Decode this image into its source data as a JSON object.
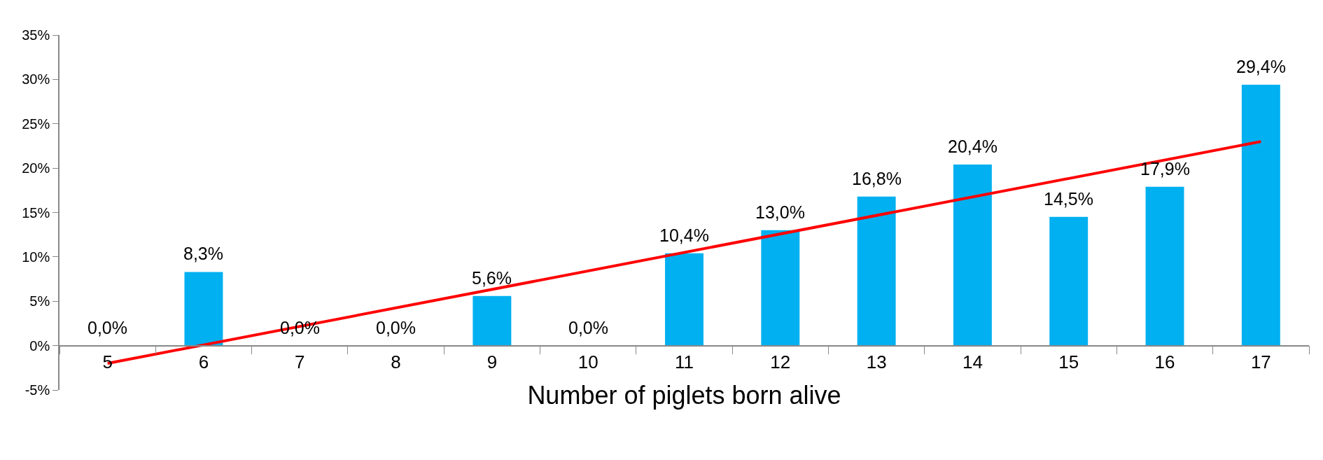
{
  "chart_data": {
    "type": "bar",
    "xlabel": "Number of piglets born alive",
    "categories": [
      "5",
      "6",
      "7",
      "8",
      "9",
      "10",
      "11",
      "12",
      "13",
      "14",
      "15",
      "16",
      "17"
    ],
    "series": [
      {
        "color": "#00b0f0",
        "values": [
          0,
          8.3,
          0,
          0,
          5.6,
          0,
          10.4,
          13.0,
          16.8,
          20.4,
          14.5,
          17.9,
          29.4
        ],
        "value_labels": [
          "0,0%",
          "8,3%",
          "0,0%",
          "0,0%",
          "5,6%",
          "0,0%",
          "10,4%",
          "13,0%",
          "16,8%",
          "20,4%",
          "14,5%",
          "17,9%",
          "29,4%"
        ]
      },
      {
        "type": "line",
        "color": "#ff0000",
        "x": [
          "5",
          "17"
        ],
        "values": [
          -2,
          23
        ]
      }
    ],
    "ylim": [
      -5,
      35
    ],
    "yticks": [
      {
        "value": -5,
        "label": "-5%"
      },
      {
        "value": 0,
        "label": "0%"
      },
      {
        "value": 5,
        "label": "5%"
      },
      {
        "value": 10,
        "label": "10%"
      },
      {
        "value": 15,
        "label": "15%"
      },
      {
        "value": 20,
        "label": "20%"
      },
      {
        "value": 25,
        "label": "25%"
      },
      {
        "value": 30,
        "label": "30%"
      },
      {
        "value": 35,
        "label": "35%"
      }
    ],
    "grid": false,
    "marker": "none",
    "line_style": "solid"
  }
}
